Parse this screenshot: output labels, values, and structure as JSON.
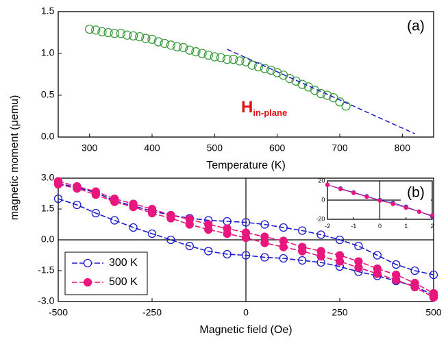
{
  "chart_data": [
    {
      "type": "scatter",
      "label": "(a)",
      "xlabel": "Temperature (K)",
      "ylabel": "magnetic moment (μemu)",
      "xlim": [
        250,
        850
      ],
      "ylim": [
        0,
        1.5
      ],
      "xticks": [
        300,
        400,
        500,
        600,
        700,
        800
      ],
      "yticks": [
        {
          "value": 0,
          "label": "0.0"
        },
        {
          "value": 0.5,
          "label": "0.5"
        },
        {
          "value": 1,
          "label": "1.0"
        },
        {
          "value": 1.5,
          "label": "1.5"
        }
      ],
      "marker": "open",
      "color": "#3a9a3a",
      "x": [
        300,
        310,
        320,
        330,
        340,
        350,
        360,
        370,
        380,
        390,
        400,
        410,
        420,
        430,
        440,
        450,
        460,
        470,
        480,
        490,
        500,
        510,
        520,
        530,
        540,
        550,
        560,
        570,
        580,
        590,
        600,
        610,
        620,
        630,
        640,
        650,
        660,
        670,
        680,
        690,
        700,
        710
      ],
      "values": [
        1.29,
        1.28,
        1.26,
        1.25,
        1.24,
        1.24,
        1.22,
        1.21,
        1.2,
        1.18,
        1.17,
        1.14,
        1.12,
        1.1,
        1.08,
        1.07,
        1.04,
        1.02,
        1.0,
        0.98,
        0.96,
        0.95,
        0.93,
        0.93,
        0.91,
        0.9,
        0.86,
        0.84,
        0.82,
        0.8,
        0.77,
        0.74,
        0.7,
        0.67,
        0.63,
        0.6,
        0.56,
        0.52,
        0.5,
        0.47,
        0.42,
        0.37
      ],
      "fit_line": {
        "color": "#1a1acc",
        "x": [
          520,
          820
        ],
        "values": [
          1.05,
          0.04
        ]
      },
      "field_label": {
        "main": "H",
        "subscript": "in-plane"
      }
    },
    {
      "type": "line",
      "label": "(b)",
      "xlabel": "Magnetic field (Oe)",
      "legend": "lower left",
      "zero_lines": true,
      "xlim": [
        -500,
        500
      ],
      "ylim": [
        -3,
        3
      ],
      "xticks": [
        -500,
        -250,
        0,
        250,
        500
      ],
      "yticks": [
        {
          "value": -3,
          "label": "-3.0"
        },
        {
          "value": -1.5,
          "label": "-1.5"
        },
        {
          "value": 0,
          "label": "0.0"
        },
        {
          "value": 1.5,
          "label": "1.5"
        },
        {
          "value": 3,
          "label": "3.0"
        }
      ],
      "x": [
        -500,
        -450,
        -400,
        -350,
        -300,
        -250,
        -200,
        -150,
        -100,
        -50,
        0,
        50,
        100,
        150,
        200,
        250,
        300,
        350,
        400,
        450,
        500
      ],
      "series": [
        {
          "name": "300 K",
          "color": "#1a1acc",
          "marker": "open",
          "branches": [
            {
              "values": [
                2.75,
                2.55,
                2.3,
                1.9,
                1.65,
                1.4,
                1.2,
                1.05,
                0.95,
                0.9,
                0.85,
                0.75,
                0.6,
                0.45,
                0.25,
                0.0,
                -0.3,
                -0.75,
                -1.2,
                -1.5,
                -1.7
              ]
            },
            {
              "values": [
                2.0,
                1.7,
                1.3,
                0.95,
                0.6,
                0.3,
                0.0,
                -0.3,
                -0.55,
                -0.7,
                -0.75,
                -0.85,
                -0.9,
                -1.0,
                -1.1,
                -1.3,
                -1.55,
                -1.75,
                -2.0,
                -2.25,
                -2.7
              ]
            }
          ]
        },
        {
          "name": "500 K",
          "color": "#e8177d",
          "marker": "filled",
          "branches": [
            {
              "values": [
                2.85,
                2.6,
                2.35,
                2.0,
                1.75,
                1.5,
                1.2,
                1.0,
                0.75,
                0.55,
                0.35,
                0.15,
                -0.05,
                -0.35,
                -0.55,
                -0.75,
                -1.05,
                -1.4,
                -1.7,
                -2.1,
                -2.6
              ]
            },
            {
              "values": [
                2.7,
                2.5,
                2.2,
                1.85,
                1.6,
                1.3,
                1.05,
                0.75,
                0.5,
                0.3,
                0.1,
                -0.15,
                -0.35,
                -0.55,
                -0.8,
                -1.05,
                -1.35,
                -1.65,
                -1.95,
                -2.3,
                -2.8
              ]
            }
          ]
        }
      ]
    },
    {
      "type": "line",
      "zero_lines": true,
      "xlim": [
        -2,
        2
      ],
      "ylim": [
        -20,
        20
      ],
      "xticks": [
        -2,
        -1,
        0,
        1,
        2
      ],
      "yticks": [
        -20,
        0,
        20
      ],
      "x": [
        -2,
        -1.5,
        -1,
        -0.5,
        0,
        0.5,
        1,
        1.5,
        2
      ],
      "series": [
        {
          "color": "#1a1acc",
          "marker": "open",
          "branches": [
            {
              "values": [
                16,
                12,
                8,
                4,
                0,
                -3,
                -7,
                -12,
                -17
              ]
            }
          ]
        },
        {
          "color": "#e8177d",
          "marker": "filled",
          "branches": [
            {
              "values": [
                16,
                11.5,
                7.5,
                3.5,
                -0.5,
                -4,
                -8,
                -12,
                -16
              ]
            }
          ]
        }
      ]
    }
  ]
}
